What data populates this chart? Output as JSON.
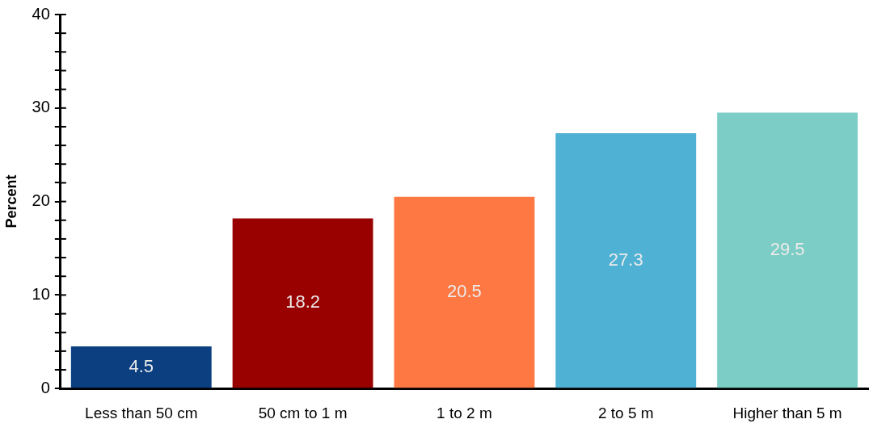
{
  "chart_data": {
    "type": "bar",
    "ylabel": "Percent",
    "categories": [
      "Less than 50 cm",
      "50 cm to 1 m",
      "1 to 2 m",
      "2 to 5 m",
      "Higher than 5 m"
    ],
    "values": [
      4.5,
      18.2,
      20.5,
      27.3,
      29.5
    ],
    "colors": [
      "#0b3f80",
      "#990000",
      "#fd7843",
      "#4fb1d3",
      "#7ccdc5"
    ],
    "ylim": [
      0,
      40
    ],
    "yticks": [
      0,
      {
        "value": 2,
        "label": null
      },
      {
        "value": 4,
        "label": null
      },
      {
        "value": 6,
        "label": null
      },
      {
        "value": 8,
        "label": null
      },
      10,
      {
        "value": 12,
        "label": null
      },
      {
        "value": 14,
        "label": null
      },
      {
        "value": 16,
        "label": null
      },
      {
        "value": 18,
        "label": null
      },
      20,
      {
        "value": 22,
        "label": null
      },
      {
        "value": 24,
        "label": null
      },
      {
        "value": 26,
        "label": null
      },
      {
        "value": 28,
        "label": null
      },
      30,
      {
        "value": 32,
        "label": null
      },
      {
        "value": 34,
        "label": null
      },
      {
        "value": 36,
        "label": null
      },
      {
        "value": 38,
        "label": null
      },
      40
    ],
    "data_labels": true
  }
}
